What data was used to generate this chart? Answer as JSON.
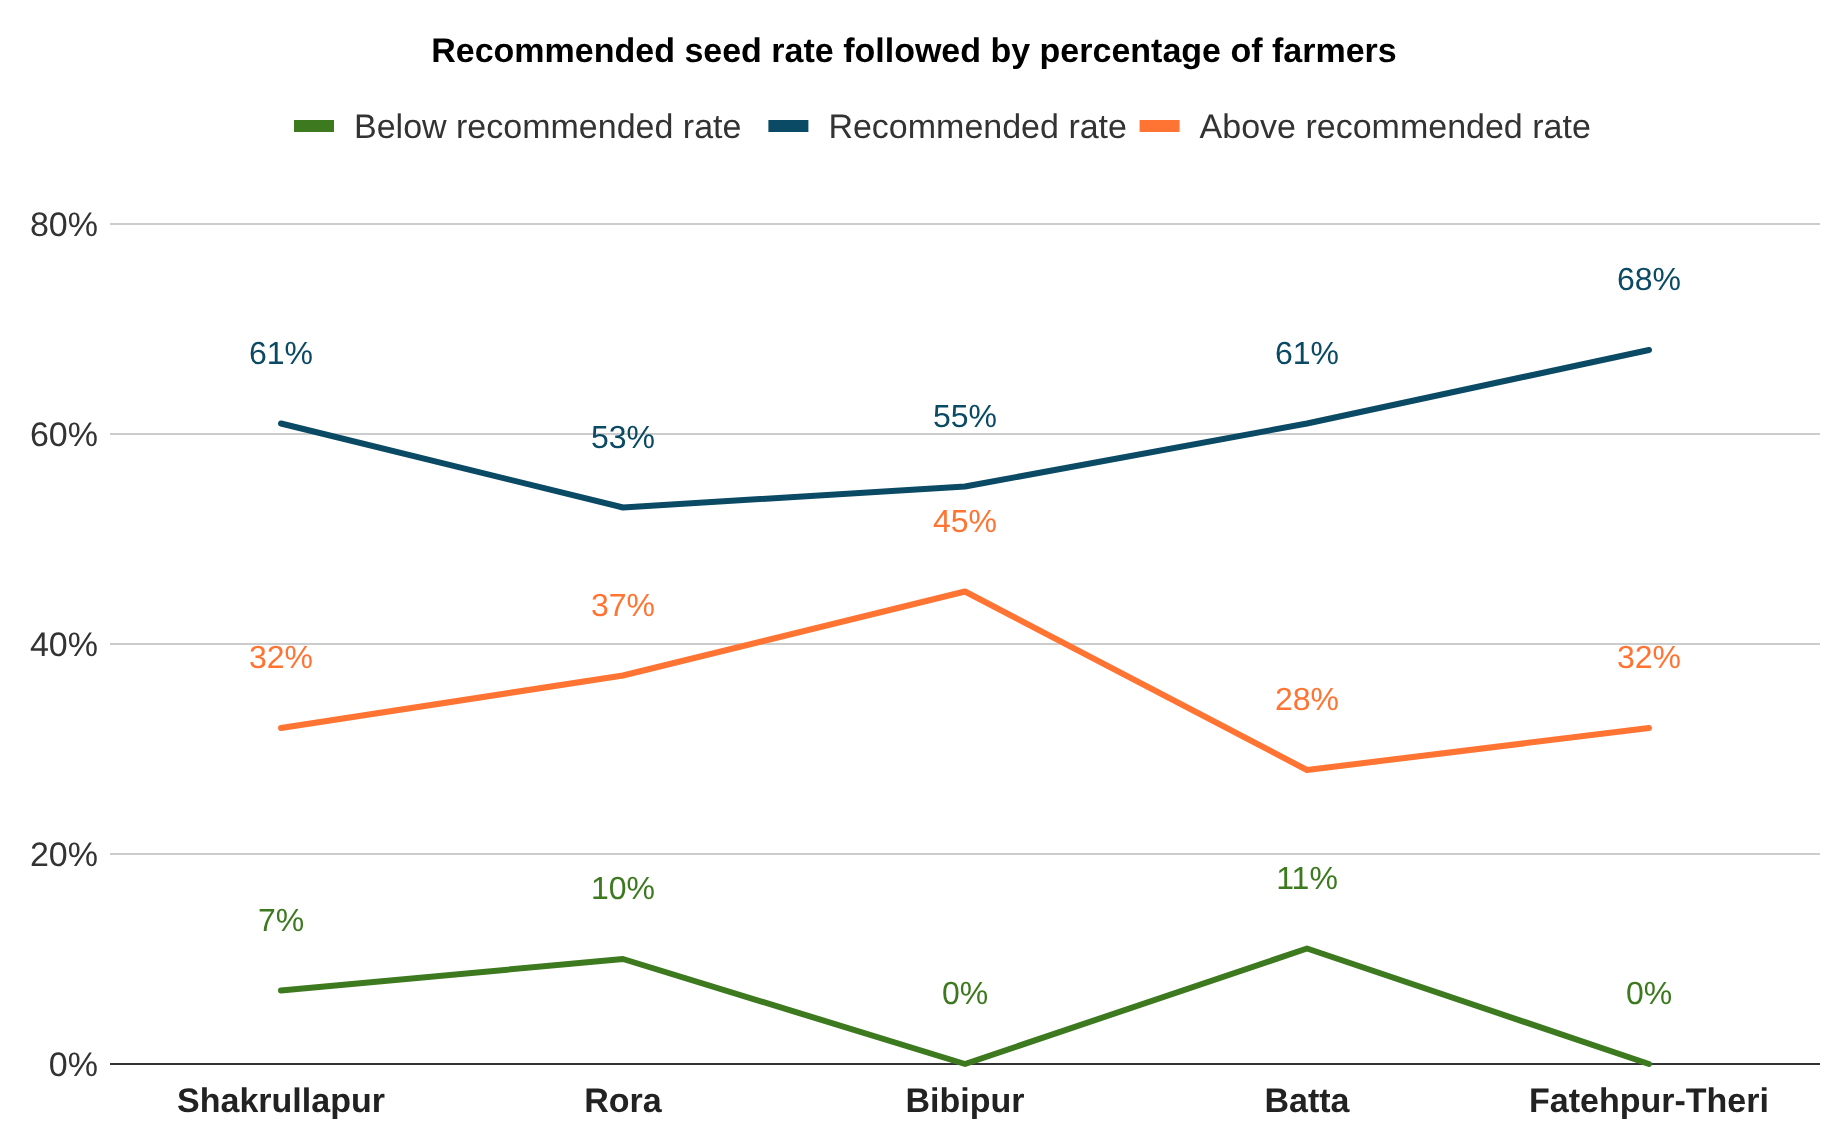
{
  "chart_data": {
    "type": "line",
    "title": "Recommended seed rate followed by percentage of farmers",
    "categories": [
      "Shakrullapur",
      "Rora",
      "Bibipur",
      "Batta",
      "Fatehpur-Theri"
    ],
    "series": [
      {
        "name": "Below recommended rate",
        "color": "#3d7a1f",
        "values": [
          7,
          10,
          0,
          11,
          0
        ],
        "value_labels": [
          "7%",
          "10%",
          "0%",
          "11%",
          "0%"
        ]
      },
      {
        "name": "Recommended rate",
        "color": "#0b4a64",
        "values": [
          61,
          53,
          55,
          61,
          68
        ],
        "value_labels": [
          "61%",
          "53%",
          "55%",
          "61%",
          "68%"
        ]
      },
      {
        "name": "Above recommended rate",
        "color": "#ff7433",
        "values": [
          32,
          37,
          45,
          28,
          32
        ],
        "value_labels": [
          "32%",
          "37%",
          "45%",
          "28%",
          "32%"
        ]
      }
    ],
    "ylim": [
      0,
      80
    ],
    "yticks": [
      {
        "value": 0,
        "label": "0%"
      },
      {
        "value": 20,
        "label": "20%"
      },
      {
        "value": 40,
        "label": "40%"
      },
      {
        "value": 60,
        "label": "60%"
      },
      {
        "value": 80,
        "label": "80%"
      }
    ],
    "grid": "y",
    "legend": "top",
    "marker": "none",
    "line_style": "solid"
  }
}
